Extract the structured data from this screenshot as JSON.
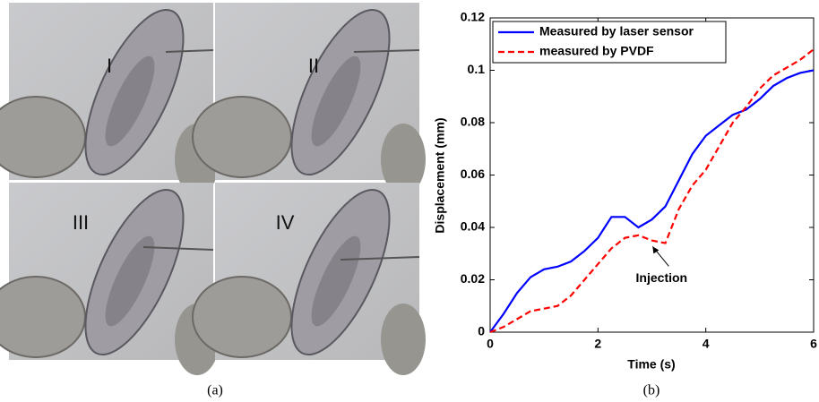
{
  "images": {
    "labels": [
      "I",
      "II",
      "III",
      "IV"
    ]
  },
  "captions": [
    "(a)",
    "(b)"
  ],
  "chart_data": {
    "type": "line",
    "xlabel": "Time (s)",
    "ylabel": "Displacement (mm)",
    "x": [
      0,
      0.25,
      0.5,
      0.75,
      1,
      1.25,
      1.5,
      1.75,
      2,
      2.25,
      2.5,
      2.75,
      3,
      3.25,
      3.5,
      3.75,
      4,
      4.25,
      4.5,
      4.75,
      5,
      5.25,
      5.5,
      5.75,
      6
    ],
    "series": [
      {
        "name": "Measured by laser sensor",
        "color": "#0000ff",
        "dash": false,
        "values": [
          0,
          0.007,
          0.015,
          0.021,
          0.024,
          0.025,
          0.027,
          0.031,
          0.036,
          0.044,
          0.044,
          0.04,
          0.043,
          0.048,
          0.058,
          0.068,
          0.075,
          0.079,
          0.083,
          0.085,
          0.089,
          0.094,
          0.097,
          0.099,
          0.1
        ]
      },
      {
        "name": "measured by PVDF",
        "color": "#ff0000",
        "dash": true,
        "values": [
          0,
          0.002,
          0.005,
          0.008,
          0.009,
          0.01,
          0.014,
          0.02,
          0.026,
          0.032,
          0.036,
          0.037,
          0.035,
          0.034,
          0.047,
          0.056,
          0.062,
          0.071,
          0.08,
          0.086,
          0.093,
          0.098,
          0.101,
          0.104,
          0.108
        ]
      }
    ],
    "annotation": "Injection",
    "xlim": [
      0,
      6
    ],
    "xticks": [
      0,
      2,
      4,
      6
    ],
    "ylim": [
      0,
      0.12
    ],
    "yticks": [
      0,
      0.02,
      0.04,
      0.06,
      0.08,
      0.1,
      0.12
    ],
    "legend": "upper-left"
  }
}
